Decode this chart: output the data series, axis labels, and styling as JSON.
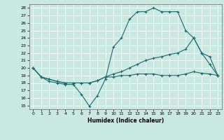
{
  "xlabel": "Humidex (Indice chaleur)",
  "bg_color": "#c8e8e0",
  "line_color": "#1a6b6b",
  "grid_color": "#ffffff",
  "xlim": [
    -0.5,
    23.5
  ],
  "ylim": [
    14.5,
    28.5
  ],
  "yticks": [
    15,
    16,
    17,
    18,
    19,
    20,
    21,
    22,
    23,
    24,
    25,
    26,
    27,
    28
  ],
  "xticks": [
    0,
    1,
    2,
    3,
    4,
    5,
    6,
    7,
    8,
    9,
    10,
    11,
    12,
    13,
    14,
    15,
    16,
    17,
    18,
    19,
    20,
    21,
    22,
    23
  ],
  "line1_x": [
    0,
    1,
    2,
    3,
    4,
    5,
    6,
    7,
    8,
    9,
    10,
    11,
    12,
    13,
    14,
    15,
    16,
    17,
    18,
    19,
    20,
    21,
    22,
    23
  ],
  "line1_y": [
    20,
    18.8,
    18.2,
    18.0,
    17.8,
    17.8,
    16.5,
    14.9,
    16.3,
    18.5,
    22.8,
    24.0,
    26.5,
    27.5,
    27.5,
    28.0,
    27.5,
    27.5,
    27.5,
    25.0,
    24.0,
    22.0,
    20.5,
    19.0
  ],
  "line2_x": [
    0,
    1,
    2,
    3,
    4,
    5,
    6,
    7,
    8,
    9,
    10,
    11,
    12,
    13,
    14,
    15,
    16,
    17,
    18,
    19,
    20,
    21,
    22,
    23
  ],
  "line2_y": [
    20,
    18.8,
    18.5,
    18.2,
    18.0,
    18.0,
    18.0,
    18.0,
    18.3,
    18.8,
    19.2,
    19.5,
    20.0,
    20.5,
    21.0,
    21.3,
    21.5,
    21.8,
    22.0,
    22.5,
    24.0,
    22.0,
    21.5,
    19.0
  ],
  "line3_x": [
    0,
    1,
    2,
    3,
    4,
    5,
    6,
    7,
    8,
    9,
    10,
    11,
    12,
    13,
    14,
    15,
    16,
    17,
    18,
    19,
    20,
    21,
    22,
    23
  ],
  "line3_y": [
    20,
    18.8,
    18.5,
    18.2,
    18.0,
    18.0,
    18.0,
    18.0,
    18.3,
    18.8,
    18.8,
    19.0,
    19.0,
    19.2,
    19.2,
    19.2,
    19.0,
    19.0,
    19.0,
    19.2,
    19.5,
    19.3,
    19.2,
    19.0
  ]
}
